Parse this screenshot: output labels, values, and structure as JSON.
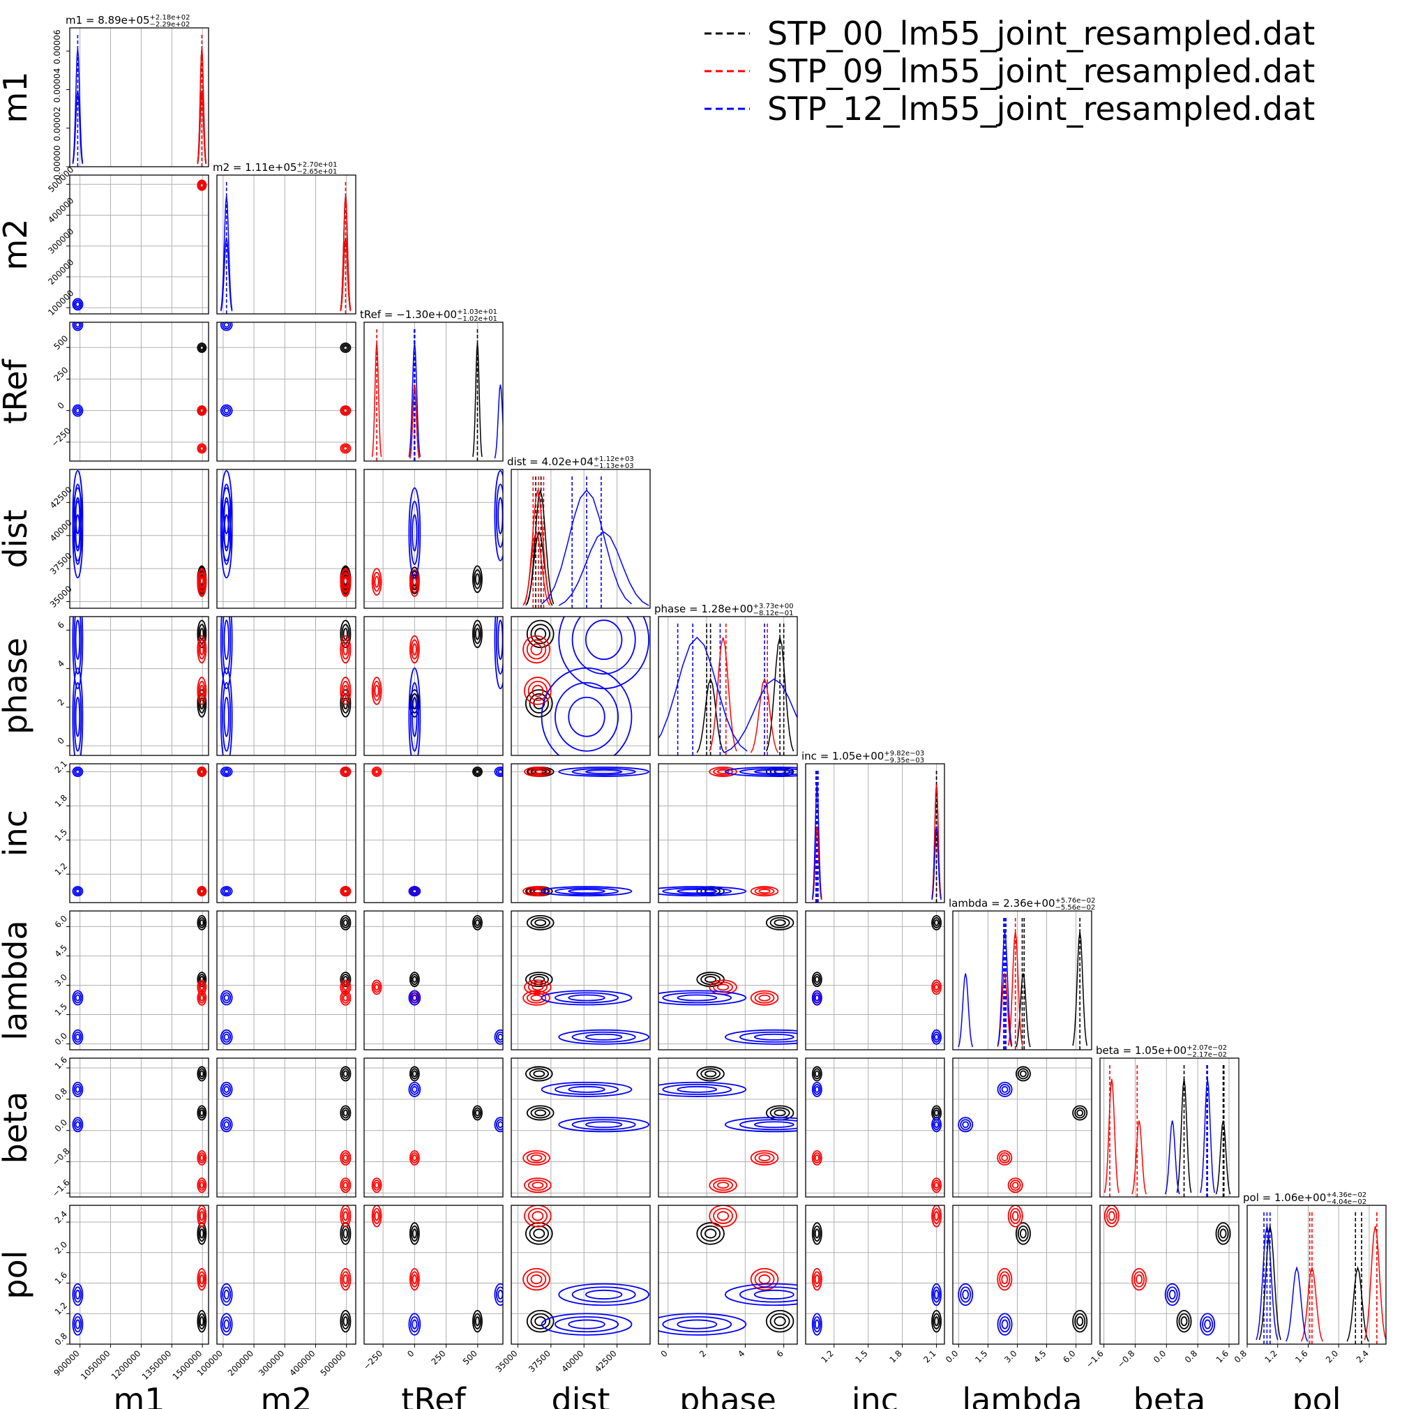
{
  "chart_data": {
    "type": "corner",
    "parameters": [
      "m1",
      "m2",
      "tRef",
      "dist",
      "phase",
      "inc",
      "lambda",
      "beta",
      "pol"
    ],
    "grid": true,
    "legend_position": "top-right",
    "legend": [
      {
        "label": "STP_00_lm55_joint_resampled.dat",
        "color": "#000000"
      },
      {
        "label": "STP_09_lm55_joint_resampled.dat",
        "color": "#ff0000"
      },
      {
        "label": "STP_12_lm55_joint_resampled.dat",
        "color": "#0000ff"
      }
    ],
    "titles": [
      {
        "param": "m1",
        "name": "m1",
        "value": "8.89e+05",
        "plus": "+2.18e+02",
        "minus": "−2.29e+02"
      },
      {
        "param": "m2",
        "name": "m2",
        "value": "1.11e+05",
        "plus": "+2.70e+01",
        "minus": "−2.65e+01"
      },
      {
        "param": "tRef",
        "name": "tRef",
        "value": "−1.30e+00",
        "plus": "+1.03e+01",
        "minus": "−1.02e+01"
      },
      {
        "param": "dist",
        "name": "dist",
        "value": "4.02e+04",
        "plus": "+1.12e+03",
        "minus": "−1.13e+03"
      },
      {
        "param": "phase",
        "name": "phase",
        "value": "1.28e+00",
        "plus": "+3.73e+00",
        "minus": "−8.12e−01"
      },
      {
        "param": "inc",
        "name": "inc",
        "value": "1.05e+00",
        "plus": "+9.82e−03",
        "minus": "−9.35e−03"
      },
      {
        "param": "lambda",
        "name": "lambda",
        "value": "2.36e+00",
        "plus": "+5.76e−02",
        "minus": "−5.56e−02"
      },
      {
        "param": "beta",
        "name": "beta",
        "value": "1.05e+00",
        "plus": "+2.07e−02",
        "minus": "−2.17e−02"
      },
      {
        "param": "pol",
        "name": "pol",
        "value": "1.06e+00",
        "plus": "+4.36e−02",
        "minus": "−4.04e−02"
      }
    ],
    "ranges": {
      "m1": [
        850000,
        1530000
      ],
      "m2": [
        80000,
        530000
      ],
      "tRef": [
        -400,
        700
      ],
      "dist": [
        34500,
        45000
      ],
      "phase": [
        -0.5,
        6.7
      ],
      "inc": [
        0.95,
        2.17
      ],
      "lambda": [
        -0.3,
        6.8
      ],
      "beta": [
        -1.7,
        1.85
      ],
      "pol": [
        0.8,
        2.62
      ]
    },
    "ticks": {
      "m1": [
        {
          "v": 900000,
          "t": "900000"
        },
        {
          "v": 1050000,
          "t": "1050000"
        },
        {
          "v": 1200000,
          "t": "1200000"
        },
        {
          "v": 1350000,
          "t": "1350000"
        },
        {
          "v": 1500000,
          "t": "1500000"
        }
      ],
      "m2": [
        {
          "v": 100000,
          "t": "100000"
        },
        {
          "v": 200000,
          "t": "200000"
        },
        {
          "v": 300000,
          "t": "300000"
        },
        {
          "v": 400000,
          "t": "400000"
        },
        {
          "v": 500000,
          "t": "500000"
        }
      ],
      "tRef": [
        {
          "v": -250,
          "t": "−250"
        },
        {
          "v": 0,
          "t": "0"
        },
        {
          "v": 250,
          "t": "250"
        },
        {
          "v": 500,
          "t": "500"
        }
      ],
      "dist": [
        {
          "v": 35000,
          "t": "35000"
        },
        {
          "v": 37500,
          "t": "37500"
        },
        {
          "v": 40000,
          "t": "40000"
        },
        {
          "v": 42500,
          "t": "42500"
        }
      ],
      "phase": [
        {
          "v": 0,
          "t": "0"
        },
        {
          "v": 2,
          "t": "2"
        },
        {
          "v": 4,
          "t": "4"
        },
        {
          "v": 6,
          "t": "6"
        }
      ],
      "inc": [
        {
          "v": 1.2,
          "t": "1.2"
        },
        {
          "v": 1.5,
          "t": "1.5"
        },
        {
          "v": 1.8,
          "t": "1.8"
        },
        {
          "v": 2.1,
          "t": "2.1"
        }
      ],
      "lambda": [
        {
          "v": 0.0,
          "t": "0.0"
        },
        {
          "v": 1.5,
          "t": "1.5"
        },
        {
          "v": 3.0,
          "t": "3.0"
        },
        {
          "v": 4.5,
          "t": "4.5"
        },
        {
          "v": 6.0,
          "t": "6.0"
        }
      ],
      "beta": [
        {
          "v": -1.6,
          "t": "−1.6"
        },
        {
          "v": -0.8,
          "t": "−0.8"
        },
        {
          "v": 0.0,
          "t": "0.0"
        },
        {
          "v": 0.8,
          "t": "0.8"
        },
        {
          "v": 1.6,
          "t": "1.6"
        }
      ],
      "pol": [
        {
          "v": 0.8,
          "t": "0.8"
        },
        {
          "v": 1.2,
          "t": "1.2"
        },
        {
          "v": 1.6,
          "t": "1.6"
        },
        {
          "v": 2.0,
          "t": "2.0"
        },
        {
          "v": 2.4,
          "t": "2.4"
        }
      ]
    },
    "m1_hist_ticks": [
      {
        "v": 0.0,
        "t": "0.00000"
      },
      {
        "v": 2e-05,
        "t": "0.00002"
      },
      {
        "v": 4e-05,
        "t": "0.00004"
      },
      {
        "v": 6e-05,
        "t": "0.00006"
      }
    ],
    "m1_hist_max": 7.2e-05,
    "series": [
      {
        "name": "STP_00_lm55_joint_resampled.dat",
        "color": "#000000",
        "modes": [
          {
            "m1": 1497000,
            "m2": 497000,
            "tRef": 498,
            "dist": 36700,
            "phase": 5.8,
            "inc": 2.1,
            "lambda": 6.2,
            "beta": 0.45,
            "pol": 1.1
          },
          {
            "m1": 1497000,
            "m2": 497000,
            "tRef": 0,
            "dist": 36600,
            "phase": 2.2,
            "inc": 1.05,
            "lambda": 3.3,
            "beta": 1.45,
            "pol": 2.25
          }
        ]
      },
      {
        "name": "STP_09_lm55_joint_resampled.dat",
        "color": "#ff0000",
        "modes": [
          {
            "m1": 1497000,
            "m2": 497000,
            "tRef": -300,
            "dist": 36500,
            "phase": 2.85,
            "inc": 2.1,
            "lambda": 2.9,
            "beta": -1.4,
            "pol": 2.48
          },
          {
            "m1": 1497000,
            "m2": 497000,
            "tRef": 0,
            "dist": 36400,
            "phase": 5.0,
            "inc": 1.05,
            "lambda": 2.35,
            "beta": -0.7,
            "pol": 1.65
          }
        ]
      },
      {
        "name": "STP_12_lm55_joint_resampled.dat",
        "color": "#0000ff",
        "modes": [
          {
            "m1": 889000,
            "m2": 111000,
            "tRef": 0,
            "dist": 40200,
            "phase": 1.5,
            "inc": 1.05,
            "lambda": 2.36,
            "beta": 1.05,
            "pol": 1.06
          },
          {
            "m1": 889000,
            "m2": 111000,
            "tRef": 680,
            "dist": 41500,
            "phase": 5.5,
            "inc": 2.1,
            "lambda": 0.35,
            "beta": 0.15,
            "pol": 1.45
          }
        ]
      }
    ],
    "hist_markers": {
      "m1": [
        {
          "v": 889000,
          "c": "#0000ff"
        },
        {
          "v": 1497000,
          "c": "#ff0000"
        }
      ],
      "m2": [
        {
          "v": 111000,
          "c": "#0000ff"
        },
        {
          "v": 497000,
          "c": "#ff0000"
        }
      ],
      "tRef": [
        {
          "v": -300,
          "c": "#ff0000"
        },
        {
          "v": -3,
          "c": "#0000ff"
        },
        {
          "v": 2,
          "c": "#0000ff"
        },
        {
          "v": 498,
          "c": "#000000"
        }
      ],
      "dist": [
        {
          "v": 36150,
          "c": "#ff0000"
        },
        {
          "v": 36350,
          "c": "#000000"
        },
        {
          "v": 36550,
          "c": "#ff0000"
        },
        {
          "v": 36750,
          "c": "#000000"
        },
        {
          "v": 36950,
          "c": "#ff0000"
        },
        {
          "v": 39100,
          "c": "#0000ff"
        },
        {
          "v": 40200,
          "c": "#0000ff"
        },
        {
          "v": 41300,
          "c": "#0000ff"
        }
      ],
      "phase": [
        {
          "v": 0.5,
          "c": "#0000ff"
        },
        {
          "v": 1.28,
          "c": "#0000ff"
        },
        {
          "v": 2.0,
          "c": "#000000"
        },
        {
          "v": 2.2,
          "c": "#000000"
        },
        {
          "v": 2.7,
          "c": "#0000ff"
        },
        {
          "v": 3.0,
          "c": "#ff0000"
        },
        {
          "v": 5.0,
          "c": "#0000ff"
        },
        {
          "v": 5.15,
          "c": "#ff0000"
        },
        {
          "v": 5.8,
          "c": "#000000"
        },
        {
          "v": 6.0,
          "c": "#000000"
        }
      ],
      "inc": [
        {
          "v": 1.04,
          "c": "#0000ff"
        },
        {
          "v": 1.05,
          "c": "#0000ff"
        },
        {
          "v": 1.06,
          "c": "#0000ff"
        },
        {
          "v": 2.1,
          "c": "#ff0000"
        },
        {
          "v": 2.1,
          "c": "#000000"
        }
      ],
      "lambda": [
        {
          "v": 2.3,
          "c": "#0000ff"
        },
        {
          "v": 2.36,
          "c": "#0000ff"
        },
        {
          "v": 2.42,
          "c": "#0000ff"
        },
        {
          "v": 2.9,
          "c": "#ff0000"
        },
        {
          "v": 3.25,
          "c": "#000000"
        },
        {
          "v": 3.35,
          "c": "#000000"
        },
        {
          "v": 6.2,
          "c": "#000000"
        }
      ],
      "beta": [
        {
          "v": -1.45,
          "c": "#ff0000"
        },
        {
          "v": -0.75,
          "c": "#ff0000"
        },
        {
          "v": 0.45,
          "c": "#000000"
        },
        {
          "v": 1.03,
          "c": "#0000ff"
        },
        {
          "v": 1.05,
          "c": "#0000ff"
        },
        {
          "v": 1.45,
          "c": "#000000"
        },
        {
          "v": 1.47,
          "c": "#000000"
        }
      ],
      "pol": [
        {
          "v": 1.02,
          "c": "#0000ff"
        },
        {
          "v": 1.06,
          "c": "#0000ff"
        },
        {
          "v": 1.1,
          "c": "#0000ff"
        },
        {
          "v": 1.62,
          "c": "#ff0000"
        },
        {
          "v": 1.65,
          "c": "#ff0000"
        },
        {
          "v": 2.22,
          "c": "#000000"
        },
        {
          "v": 2.3,
          "c": "#000000"
        },
        {
          "v": 2.5,
          "c": "#ff0000"
        }
      ]
    }
  }
}
